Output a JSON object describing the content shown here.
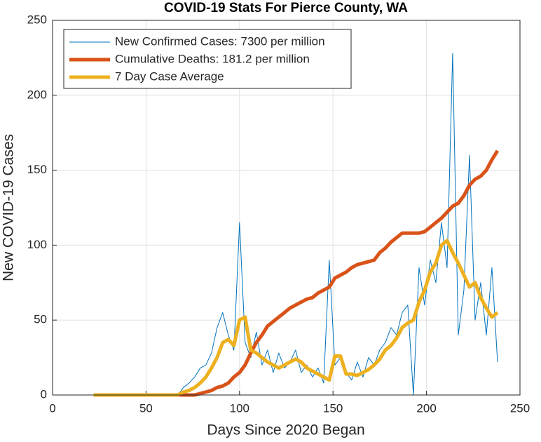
{
  "chart_data": {
    "type": "line",
    "title": "COVID-19 Stats For Pierce County, WA",
    "xlabel": "Days Since 2020 Began",
    "ylabel": "New COVID-19 Cases",
    "x": [
      22,
      25,
      28,
      31,
      34,
      37,
      40,
      43,
      46,
      49,
      52,
      55,
      58,
      61,
      64,
      67,
      70,
      73,
      76,
      79,
      82,
      85,
      88,
      91,
      94,
      97,
      100,
      103,
      106,
      109,
      112,
      115,
      118,
      121,
      124,
      127,
      130,
      133,
      136,
      139,
      142,
      145,
      148,
      151,
      154,
      157,
      160,
      163,
      166,
      169,
      172,
      175,
      178,
      181,
      184,
      187,
      190,
      193,
      196,
      199,
      202,
      205,
      208,
      211,
      214,
      217,
      220,
      223,
      226,
      229,
      232,
      235,
      238
    ],
    "series": [
      {
        "name": "New Confirmed Cases: 7300 per million",
        "color": "#0072BD",
        "width": 1,
        "values": [
          0,
          0,
          0,
          0,
          0,
          0,
          0,
          0,
          0,
          0,
          0,
          0,
          0,
          0,
          0,
          0,
          5,
          8,
          12,
          18,
          20,
          28,
          45,
          55,
          40,
          30,
          115,
          35,
          25,
          42,
          20,
          30,
          15,
          28,
          18,
          22,
          30,
          15,
          20,
          12,
          18,
          8,
          90,
          20,
          25,
          15,
          10,
          22,
          12,
          25,
          20,
          30,
          35,
          45,
          40,
          55,
          60,
          0,
          85,
          60,
          90,
          75,
          115,
          85,
          228,
          40,
          70,
          160,
          50,
          75,
          40,
          85,
          22
        ]
      },
      {
        "name": "Cumulative Deaths: 181.2 per million",
        "color": "#D95319",
        "width": 5,
        "values": [
          0,
          0,
          0,
          0,
          0,
          0,
          0,
          0,
          0,
          0,
          0,
          0,
          0,
          0,
          0,
          0,
          0,
          0,
          0,
          1,
          2,
          3,
          5,
          6,
          8,
          12,
          15,
          20,
          28,
          35,
          40,
          46,
          49,
          52,
          55,
          58,
          60,
          62,
          64,
          65,
          68,
          70,
          72,
          78,
          80,
          82,
          85,
          87,
          88,
          89,
          90,
          95,
          98,
          102,
          105,
          108,
          108,
          108,
          108,
          109,
          112,
          115,
          118,
          122,
          126,
          128,
          133,
          140,
          144,
          146,
          150,
          157,
          163
        ]
      },
      {
        "name": "7 Day Case Average",
        "color": "#EDB120",
        "width": 5,
        "values": [
          0,
          0,
          0,
          0,
          0,
          0,
          0,
          0,
          0,
          0,
          0,
          0,
          0,
          0,
          0,
          0,
          2,
          3,
          5,
          8,
          12,
          18,
          25,
          35,
          37,
          33,
          50,
          52,
          30,
          28,
          25,
          22,
          20,
          18,
          20,
          22,
          24,
          22,
          18,
          16,
          14,
          12,
          10,
          26,
          26,
          14,
          14,
          13,
          15,
          17,
          20,
          24,
          30,
          33,
          38,
          45,
          48,
          50,
          62,
          70,
          82,
          88,
          100,
          103,
          95,
          88,
          80,
          72,
          75,
          65,
          58,
          52,
          55
        ]
      }
    ],
    "xlim": [
      0,
      250
    ],
    "xticks": [
      0,
      50,
      100,
      150,
      200,
      250
    ],
    "ylim": [
      0,
      250
    ],
    "yticks": [
      0,
      50,
      100,
      150,
      200,
      250
    ],
    "grid": true,
    "legend": "upper left"
  }
}
